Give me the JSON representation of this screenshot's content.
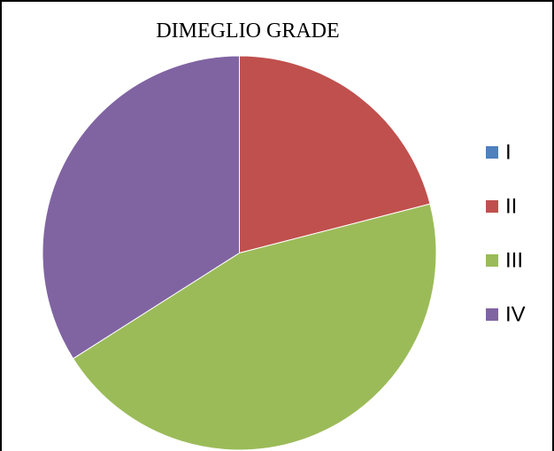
{
  "chart_data": {
    "type": "pie",
    "title": "DIMEGLIO GRADE",
    "categories": [
      "I",
      "II",
      "III",
      "IV"
    ],
    "values": [
      0,
      21,
      45,
      34
    ],
    "colors": [
      "#4f81bd",
      "#c0504d",
      "#9bbb59",
      "#8064a2"
    ],
    "legend": "right"
  }
}
